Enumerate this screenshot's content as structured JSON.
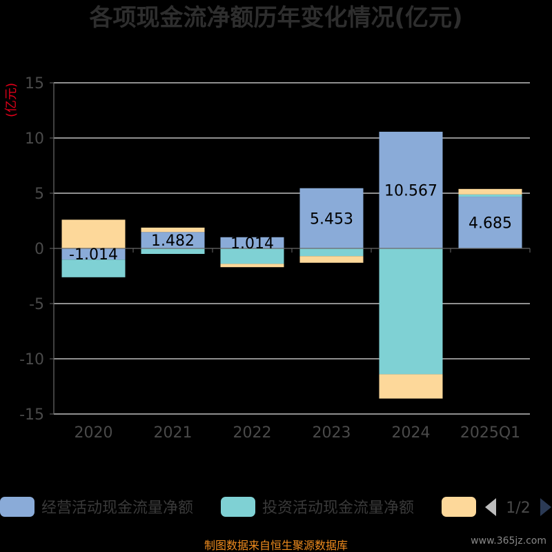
{
  "chart_data": {
    "type": "bar",
    "stacked": true,
    "title": "各项现金流净额历年变化情况(亿元)",
    "ylabel": "(亿元)",
    "xlabel": "",
    "ylim": [
      -15,
      15
    ],
    "yticks": [
      15,
      10,
      5,
      0,
      -5,
      -10,
      -15
    ],
    "grid": true,
    "categories": [
      "2020",
      "2021",
      "2022",
      "2023",
      "2024",
      "2025Q1"
    ],
    "series": [
      {
        "name": "经营活动现金流量净额",
        "color": "#8aabd8",
        "values": [
          -1.014,
          1.482,
          1.014,
          5.453,
          10.567,
          4.685
        ]
      },
      {
        "name": "投资活动现金流量净额",
        "color": "#7fd1d4",
        "values": [
          -1.6,
          -0.5,
          -1.4,
          -0.7,
          -11.4,
          0.2
        ]
      },
      {
        "name": "",
        "color": "#fdd89a",
        "values": [
          2.6,
          0.4,
          -0.3,
          -0.6,
          -2.2,
          0.5
        ]
      }
    ],
    "data_labels": [
      "-1.014",
      "1.482",
      "1.014",
      "5.453",
      "10.567",
      "4.685"
    ],
    "legend_position": "bottom"
  },
  "legend": {
    "page_indicator": "1/2",
    "prev_icon": "triangle-left-icon",
    "next_icon": "triangle-right-icon"
  },
  "footer": {
    "source": "制图数据来自恒生聚源数据库",
    "watermark": "www.365jz.com"
  }
}
